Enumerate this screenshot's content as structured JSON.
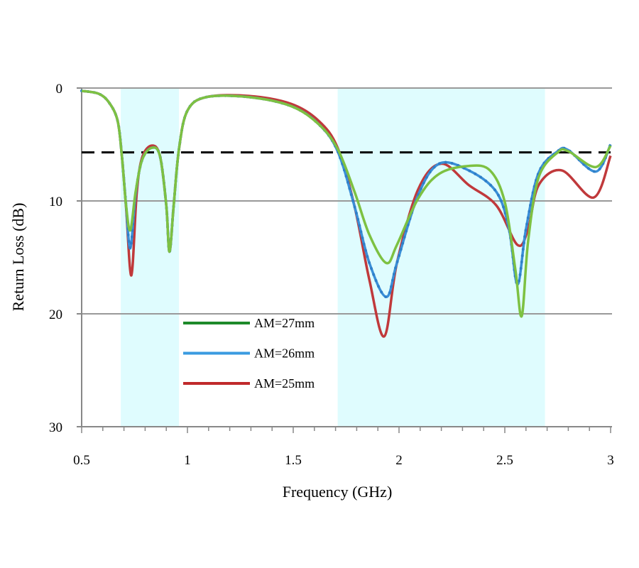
{
  "chart_data": {
    "type": "line",
    "title": "",
    "xlabel": "Frequency (GHz)",
    "ylabel": "Return Loss (dB)",
    "xlim": [
      0.5,
      3
    ],
    "ylim": [
      0,
      30
    ],
    "y_inverted": true,
    "x_ticks": [
      "0.5",
      "1",
      "1.5",
      "2",
      "2.5",
      "3"
    ],
    "y_ticks": [
      "0",
      "10",
      "20",
      "30"
    ],
    "grid": "horizontal",
    "legend_position": "center-left",
    "threshold_line": {
      "value": 5.7,
      "style": "dashed",
      "color": "#000000"
    },
    "shaded_bands": [
      {
        "from": 0.685,
        "to": 0.96,
        "color": "#dffcfe"
      },
      {
        "from": 1.71,
        "to": 2.69,
        "color": "#dffcfe"
      }
    ],
    "series": [
      {
        "name": "AM=27mm",
        "color": "#7dc142",
        "legend_color": "#1e8a2a",
        "x": [
          0.5,
          0.58,
          0.63,
          0.67,
          0.69,
          0.71,
          0.73,
          0.755,
          0.785,
          0.83,
          0.87,
          0.9,
          0.915,
          0.935,
          0.96,
          1.0,
          1.09,
          1.29,
          1.49,
          1.62,
          1.71,
          1.79,
          1.86,
          1.94,
          1.99,
          2.09,
          2.19,
          2.33,
          2.43,
          2.5,
          2.55,
          2.58,
          2.61,
          2.66,
          2.75,
          2.8,
          2.93,
          3.0
        ],
        "y": [
          0.25,
          0.5,
          1.3,
          2.9,
          6,
          10.4,
          12.6,
          9.2,
          6.4,
          5.3,
          6,
          10.4,
          14.5,
          10.4,
          5.4,
          2.0,
          0.8,
          0.8,
          1.6,
          3.2,
          5.4,
          9.2,
          13,
          15.5,
          13.9,
          9.8,
          7.6,
          6.9,
          7.3,
          10.1,
          16.1,
          20.2,
          13.6,
          7.9,
          5.7,
          5.6,
          7,
          5.1
        ]
      },
      {
        "name": "AM=26mm",
        "color": "#3a8fd8",
        "legend_color": "#3a9be0",
        "x": [
          0.5,
          0.58,
          0.63,
          0.67,
          0.69,
          0.71,
          0.73,
          0.755,
          0.785,
          0.83,
          0.87,
          0.9,
          0.915,
          0.935,
          0.96,
          1.0,
          1.09,
          1.29,
          1.49,
          1.62,
          1.71,
          1.79,
          1.86,
          1.94,
          1.99,
          2.09,
          2.19,
          2.33,
          2.46,
          2.52,
          2.56,
          2.6,
          2.66,
          2.75,
          2.8,
          2.93,
          3.0
        ],
        "y": [
          0.25,
          0.5,
          1.3,
          2.9,
          6,
          10.4,
          14.2,
          9.4,
          6.4,
          5.3,
          6,
          10.4,
          14.5,
          10.4,
          5.4,
          2.0,
          0.8,
          0.8,
          1.6,
          3.2,
          5.6,
          10.5,
          15.5,
          18.5,
          15.5,
          9.5,
          6.7,
          7.3,
          9.2,
          12.5,
          17.4,
          12.5,
          7.5,
          5.6,
          5.5,
          7.4,
          5.0
        ]
      },
      {
        "name": "AM=25mm",
        "color": "#c0393b",
        "legend_color": "#c0292b",
        "x": [
          0.5,
          0.58,
          0.63,
          0.67,
          0.69,
          0.71,
          0.735,
          0.76,
          0.785,
          0.83,
          0.87,
          0.9,
          0.915,
          0.935,
          0.96,
          1.0,
          1.09,
          1.29,
          1.49,
          1.62,
          1.71,
          1.79,
          1.86,
          1.93,
          1.99,
          2.09,
          2.2,
          2.33,
          2.46,
          2.56,
          2.61,
          2.66,
          2.77,
          2.92,
          3.0
        ],
        "y": [
          0.25,
          0.5,
          1.3,
          2.9,
          6,
          10.6,
          16.6,
          9.4,
          6.2,
          5.1,
          6,
          10.4,
          14.5,
          10.4,
          5.4,
          2.0,
          0.8,
          0.7,
          1.4,
          2.9,
          5.3,
          10.5,
          17,
          22,
          15.5,
          9,
          6.7,
          8.6,
          10.4,
          13.9,
          12.5,
          8.6,
          7.3,
          9.7,
          6.0
        ]
      }
    ]
  }
}
